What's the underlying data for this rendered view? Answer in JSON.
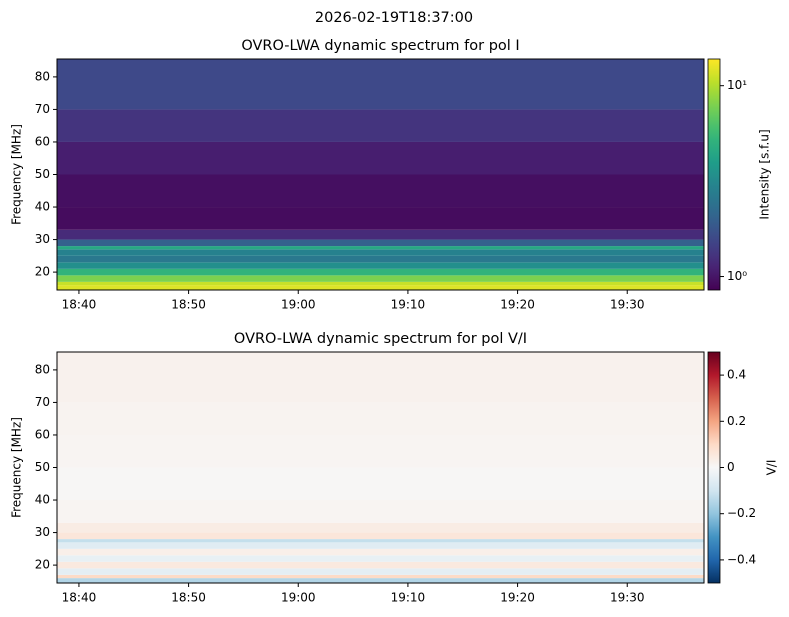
{
  "title": "2026-02-19T18:37:00",
  "chart_data": [
    {
      "type": "heatmap",
      "title": "OVRO-LWA dynamic spectrum for pol I",
      "y_label": "Frequency [MHz]",
      "colorbar_label": "Intensity [s.f.u]",
      "colormap": "viridis",
      "color_log": true,
      "xlim": [
        "18:38",
        "19:37"
      ],
      "xticks": [
        "18:40",
        "18:50",
        "19:00",
        "19:10",
        "19:20",
        "19:30"
      ],
      "ylim": [
        14.5,
        85.5
      ],
      "yticks": [
        20,
        30,
        40,
        50,
        60,
        70,
        80
      ],
      "y_bins": [
        14.5,
        16,
        17,
        19,
        21,
        23,
        25,
        27,
        28,
        30,
        33,
        40,
        50,
        60,
        70,
        85.5
      ],
      "values": [
        12.0,
        11.0,
        7.9,
        5.2,
        3.4,
        2.6,
        2.9,
        4.5,
        2.0,
        1.19,
        0.93,
        0.95,
        1.07,
        1.3,
        1.58
      ],
      "clim": [
        0.85,
        13.8
      ],
      "cticks": [
        {
          "value": 1,
          "label": "10⁰"
        },
        {
          "value": 10,
          "label": "10¹"
        }
      ]
    },
    {
      "type": "heatmap",
      "title": "OVRO-LWA dynamic spectrum for pol V/I",
      "y_label": "Frequency [MHz]",
      "colorbar_label": "V/I",
      "colormap": "RdBu_r",
      "color_log": false,
      "xlim": [
        "18:38",
        "19:37"
      ],
      "xticks": [
        "18:40",
        "18:50",
        "19:00",
        "19:10",
        "19:20",
        "19:30"
      ],
      "ylim": [
        14.5,
        85.5
      ],
      "yticks": [
        20,
        30,
        40,
        50,
        60,
        70,
        80
      ],
      "y_bins": [
        14.5,
        16,
        17,
        19,
        21,
        23,
        25,
        27,
        28,
        30,
        33,
        40,
        50,
        60,
        70,
        85.5
      ],
      "values": [
        -0.15,
        0.1,
        -0.05,
        0.05,
        -0.04,
        0.03,
        -0.06,
        -0.12,
        0.06,
        0.04,
        0.01,
        0.005,
        0.01,
        0.015,
        0.02
      ],
      "clim": [
        -0.5,
        0.5
      ],
      "cticks": [
        {
          "value": -0.4,
          "label": "−0.4"
        },
        {
          "value": -0.2,
          "label": "−0.2"
        },
        0.0,
        0.2,
        0.4
      ]
    }
  ]
}
